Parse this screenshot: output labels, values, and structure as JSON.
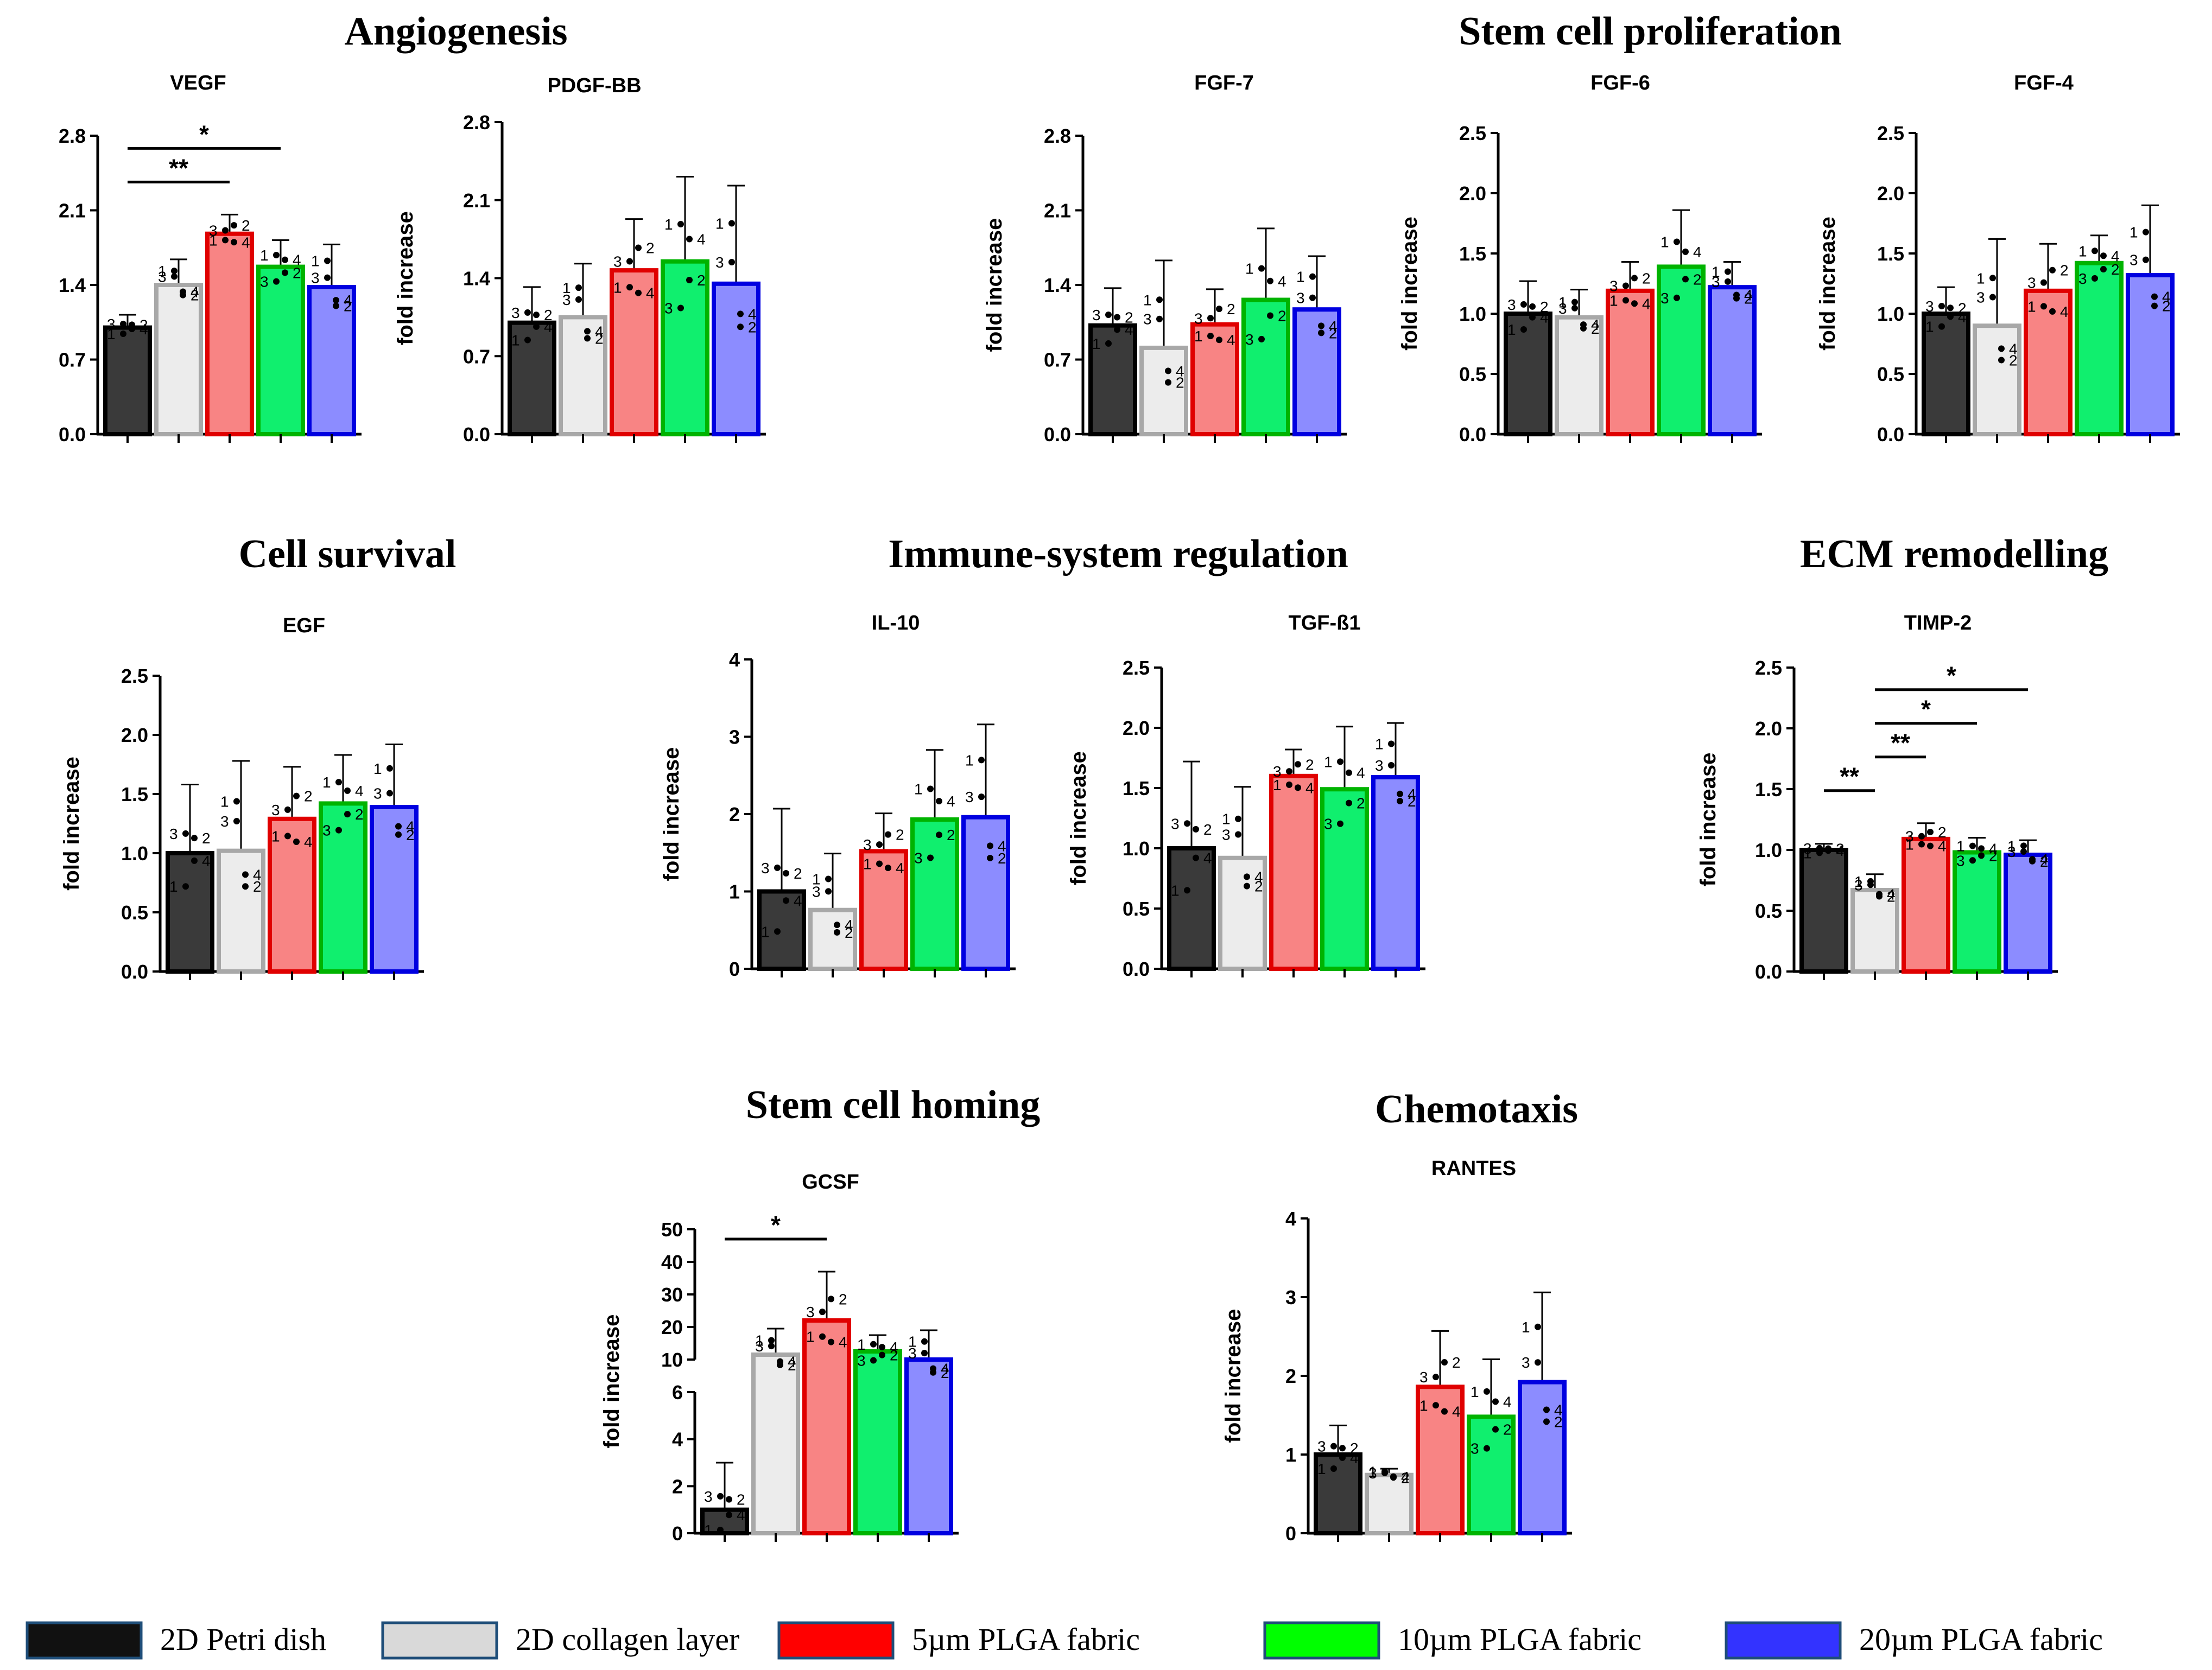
{
  "sections": [
    {
      "id": "angiogenesis",
      "title": "Angiogenesis"
    },
    {
      "id": "stem_prolif",
      "title": "Stem cell proliferation"
    },
    {
      "id": "cell_survival",
      "title": "Cell survival"
    },
    {
      "id": "immune",
      "title": "Immune-system regulation"
    },
    {
      "id": "ecm",
      "title": "ECM remodelling"
    },
    {
      "id": "homing",
      "title": "Stem cell homing"
    },
    {
      "id": "chemotaxis",
      "title": "Chemotaxis"
    }
  ],
  "legend": [
    {
      "label": "2D Petri dish",
      "fill": "#111111",
      "stroke": "#1f4e79"
    },
    {
      "label": "2D collagen layer",
      "fill": "#d9d9d9",
      "stroke": "#1f4e79"
    },
    {
      "label": "5µm PLGA fabric",
      "fill": "#ff0000",
      "stroke": "#1f4e79"
    },
    {
      "label": "10µm PLGA fabric",
      "fill": "#00ff00",
      "stroke": "#1f4e79"
    },
    {
      "label": "20µm PLGA fabric",
      "fill": "#3333ff",
      "stroke": "#1f4e79"
    }
  ],
  "colors": {
    "bar_fill": [
      "#3a3a3a",
      "#ececec",
      "#f88484",
      "#10ef6e",
      "#8c8cff"
    ],
    "bar_stroke": [
      "#000000",
      "#a8a8a8",
      "#e00000",
      "#00b300",
      "#0000e0"
    ]
  },
  "chart_data": [
    {
      "id": "VEGF",
      "type": "bar",
      "title": "VEGF",
      "ylabel": "",
      "ylim": [
        0,
        2.8
      ],
      "yticks": [
        "0.0",
        "0.7",
        "1.4",
        "2.1",
        "2.8"
      ],
      "values": [
        1.0,
        1.4,
        1.88,
        1.57,
        1.38
      ],
      "errors": [
        0.12,
        0.24,
        0.18,
        0.25,
        0.4
      ],
      "significance": [
        {
          "from": 0,
          "to": 2,
          "label": "**"
        },
        {
          "from": 0,
          "to": 3,
          "label": "*"
        }
      ]
    },
    {
      "id": "PDGF-BB",
      "type": "bar",
      "title": "PDGF-BB",
      "ylabel": "fold increase",
      "ylim": [
        0,
        2.8
      ],
      "yticks": [
        "0.0",
        "0.7",
        "1.4",
        "2.1",
        "2.8"
      ],
      "values": [
        1.0,
        1.05,
        1.47,
        1.55,
        1.35
      ],
      "errors": [
        0.32,
        0.48,
        0.46,
        0.76,
        0.88
      ],
      "significance": []
    },
    {
      "id": "FGF-7",
      "type": "bar",
      "title": "FGF-7",
      "ylabel": "fold increase",
      "ylim": [
        0,
        2.8
      ],
      "yticks": [
        "0.0",
        "0.7",
        "1.4",
        "2.1",
        "2.8"
      ],
      "values": [
        1.02,
        0.81,
        1.03,
        1.26,
        1.17
      ],
      "errors": [
        0.35,
        0.82,
        0.33,
        0.67,
        0.5
      ],
      "significance": []
    },
    {
      "id": "FGF-6",
      "type": "bar",
      "title": "FGF-6",
      "ylabel": "fold increase",
      "ylim": [
        0,
        2.5
      ],
      "yticks": [
        "0.0",
        "0.5",
        "1.0",
        "1.5",
        "2.0",
        "2.5"
      ],
      "values": [
        1.0,
        0.97,
        1.19,
        1.39,
        1.22
      ],
      "errors": [
        0.27,
        0.23,
        0.24,
        0.47,
        0.21
      ],
      "significance": []
    },
    {
      "id": "FGF-4",
      "type": "bar",
      "title": "FGF-4",
      "ylabel": "fold increase",
      "ylim": [
        0,
        2.5
      ],
      "yticks": [
        "0.0",
        "0.5",
        "1.0",
        "1.5",
        "2.0",
        "2.5"
      ],
      "values": [
        1.0,
        0.9,
        1.19,
        1.42,
        1.32
      ],
      "errors": [
        0.22,
        0.72,
        0.39,
        0.23,
        0.58
      ],
      "significance": []
    },
    {
      "id": "EGF",
      "type": "bar",
      "title": "EGF",
      "ylabel": "fold increase",
      "ylim": [
        0,
        2.5
      ],
      "yticks": [
        "0.0",
        "0.5",
        "1.0",
        "1.5",
        "2.0",
        "2.5"
      ],
      "values": [
        1.0,
        1.02,
        1.29,
        1.42,
        1.39
      ],
      "errors": [
        0.58,
        0.76,
        0.44,
        0.41,
        0.53
      ],
      "significance": []
    },
    {
      "id": "IL-10",
      "type": "bar",
      "title": "IL-10",
      "ylabel": "fold increase",
      "ylim": [
        0,
        4
      ],
      "yticks": [
        "0",
        "1",
        "2",
        "3",
        "4"
      ],
      "values": [
        1.0,
        0.76,
        1.52,
        1.93,
        1.96
      ],
      "errors": [
        1.07,
        0.73,
        0.49,
        0.9,
        1.2
      ],
      "significance": []
    },
    {
      "id": "TGF-b1",
      "type": "bar",
      "title": "TGF-ß1",
      "ylabel": "fold increase",
      "ylim": [
        0,
        2.5
      ],
      "yticks": [
        "0.0",
        "0.5",
        "1.0",
        "1.5",
        "2.0",
        "2.5"
      ],
      "values": [
        1.0,
        0.92,
        1.6,
        1.49,
        1.59
      ],
      "errors": [
        0.72,
        0.59,
        0.22,
        0.52,
        0.45
      ],
      "significance": []
    },
    {
      "id": "TIMP-2",
      "type": "bar",
      "title": "TIMP-2",
      "ylabel": "fold increase",
      "ylim": [
        0,
        2.5
      ],
      "yticks": [
        "0.0",
        "0.5",
        "1.0",
        "1.5",
        "2.0",
        "2.5"
      ],
      "values": [
        1.0,
        0.67,
        1.09,
        0.98,
        0.96
      ],
      "errors": [
        0.05,
        0.13,
        0.13,
        0.12,
        0.12
      ],
      "significance": [
        {
          "from": 0,
          "to": 1,
          "label": "**"
        },
        {
          "from": 1,
          "to": 2,
          "label": "**"
        },
        {
          "from": 1,
          "to": 3,
          "label": "*"
        },
        {
          "from": 1,
          "to": 4,
          "label": "*"
        }
      ]
    },
    {
      "id": "GCSF",
      "type": "bar",
      "title": "GCSF",
      "ylabel": "fold increase",
      "broken_axis": true,
      "ylim_lower": [
        0,
        6
      ],
      "ylim_upper": [
        10,
        50
      ],
      "yticks_lower": [
        "0",
        "2",
        "4",
        "6"
      ],
      "yticks_upper": [
        "10",
        "20",
        "30",
        "40",
        "50"
      ],
      "values": [
        1.0,
        11.5,
        22,
        12.5,
        10
      ],
      "errors": [
        2.0,
        8,
        15,
        5,
        9
      ],
      "significance": [
        {
          "from": 0,
          "to": 2,
          "label": "*"
        }
      ]
    },
    {
      "id": "RANTES",
      "type": "bar",
      "title": "RANTES",
      "ylabel": "fold increase",
      "ylim": [
        0,
        4
      ],
      "yticks": [
        "0",
        "1",
        "2",
        "3",
        "4"
      ],
      "values": [
        1.0,
        0.74,
        1.86,
        1.48,
        1.92
      ],
      "errors": [
        0.37,
        0.08,
        0.71,
        0.73,
        1.14
      ],
      "significance": []
    }
  ]
}
